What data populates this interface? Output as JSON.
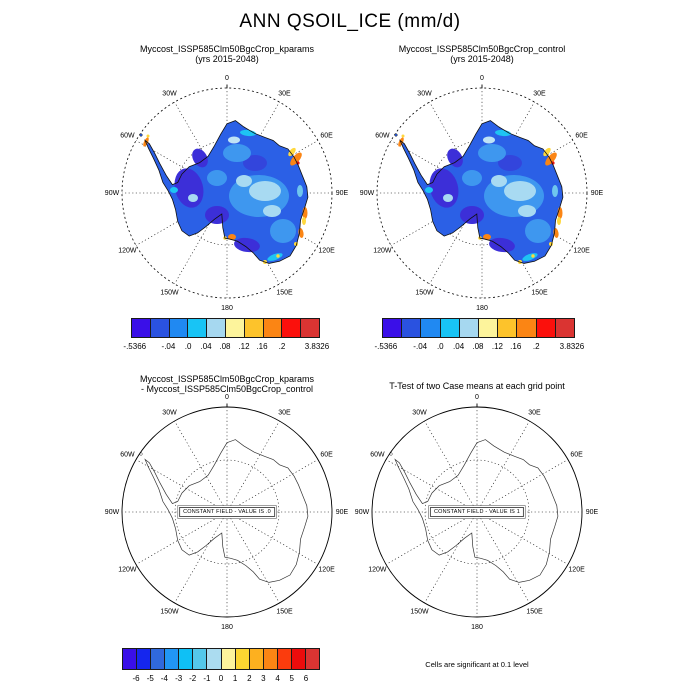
{
  "main_title": "ANN QSOIL_ICE (mm/d)",
  "panels": {
    "top_left": {
      "title_line1": "Myccost_ISSP585Clm50BgcCrop_kparams",
      "title_line2": "(yrs 2015-2048)"
    },
    "top_right": {
      "title_line1": "Myccost_ISSP585Clm50BgcCrop_control",
      "title_line2": "(yrs 2015-2048)"
    },
    "bottom_left": {
      "title_line1": "Myccost_ISSP585Clm50BgcCrop_kparams",
      "title_line2": "- Myccost_ISSP585Clm50BgcCrop_control",
      "center_label": "CONSTANT FIELD - VALUE IS .0"
    },
    "bottom_right": {
      "title_line1": "T-Test of two Case means at each grid point",
      "center_label": "CONSTANT FIELD - VALUE IS 1",
      "footnote": "Cells are significant at 0.1 level"
    }
  },
  "lon_labels": [
    {
      "label": "0",
      "deg": 0
    },
    {
      "label": "30E",
      "deg": 30
    },
    {
      "label": "60E",
      "deg": 60
    },
    {
      "label": "90E",
      "deg": 90
    },
    {
      "label": "120E",
      "deg": 120
    },
    {
      "label": "150E",
      "deg": 150
    },
    {
      "label": "180",
      "deg": 180
    },
    {
      "label": "150W",
      "deg": 210
    },
    {
      "label": "120W",
      "deg": 240
    },
    {
      "label": "90W",
      "deg": 270
    },
    {
      "label": "60W",
      "deg": 300
    },
    {
      "label": "30W",
      "deg": 330
    }
  ],
  "colorbar_top": {
    "colors": [
      "#3a0fe8",
      "#2a52e0",
      "#2089f2",
      "#18c4f5",
      "#a6d8f0",
      "#fdf49c",
      "#fdc32b",
      "#fb8514",
      "#fb100c",
      "#da3432"
    ],
    "labels": [
      "-.5366",
      "-.04",
      ".0",
      ".04",
      ".08",
      ".12",
      ".16",
      ".2",
      "3.8326"
    ],
    "label_pos_pct": [
      2,
      19.8,
      30.2,
      39.7,
      49.7,
      59.8,
      69.3,
      79.9,
      98.4
    ]
  },
  "colorbar_bottom": {
    "colors": [
      "#3a0fe8",
      "#1526ee",
      "#3069dd",
      "#2196f5",
      "#0fc0f5",
      "#55c8ea",
      "#abdcf0",
      "#fdf49c",
      "#fcd631",
      "#fdb01f",
      "#fb8514",
      "#fb3c0d",
      "#ec0c0c",
      "#da3432"
    ],
    "labels": [
      "-6",
      "-5",
      "-4",
      "-3",
      "-2",
      "-1",
      "0",
      "1",
      "2",
      "3",
      "4",
      "5",
      "6"
    ],
    "label_pos_pct": [
      7.1,
      14.3,
      21.4,
      28.6,
      35.7,
      42.9,
      50,
      57.1,
      64.3,
      71.4,
      78.6,
      85.7,
      92.9
    ]
  },
  "chart_data": [
    {
      "type": "heatmap",
      "subtype": "polar_stereographic_map",
      "region": "Antarctica",
      "title": "Myccost_ISSP585Clm50BgcCrop_kparams (yrs 2015-2048)",
      "variable": "ANN QSOIL_ICE",
      "units": "mm/d",
      "levels": [
        -0.5366,
        -0.04,
        0,
        0.04,
        0.08,
        0.12,
        0.16,
        0.2,
        3.8326
      ],
      "min": -0.5366,
      "max": 3.8326,
      "legend_position": "below",
      "grid": "30deg lon dotted graticule"
    },
    {
      "type": "heatmap",
      "subtype": "polar_stereographic_map",
      "region": "Antarctica",
      "title": "Myccost_ISSP585Clm50BgcCrop_control (yrs 2015-2048)",
      "variable": "ANN QSOIL_ICE",
      "units": "mm/d",
      "levels": [
        -0.5366,
        -0.04,
        0,
        0.04,
        0.08,
        0.12,
        0.16,
        0.2,
        3.8326
      ],
      "min": -0.5366,
      "max": 3.8326,
      "legend_position": "below",
      "grid": "30deg lon dotted graticule"
    },
    {
      "type": "heatmap",
      "subtype": "polar_stereographic_map",
      "region": "Antarctica",
      "title": "Myccost_ISSP585Clm50BgcCrop_kparams - Myccost_ISSP585Clm50BgcCrop_control",
      "note": "CONSTANT FIELD - VALUE IS .0",
      "constant_value": 0,
      "levels": [
        -6,
        -5,
        -4,
        -3,
        -2,
        -1,
        0,
        1,
        2,
        3,
        4,
        5,
        6
      ]
    },
    {
      "type": "heatmap",
      "subtype": "polar_stereographic_map",
      "region": "Antarctica",
      "title": "T-Test of two Case means at each grid point",
      "note": "CONSTANT FIELD - VALUE IS 1",
      "constant_value": 1,
      "significance": "Cells are significant at 0.1 level"
    }
  ]
}
